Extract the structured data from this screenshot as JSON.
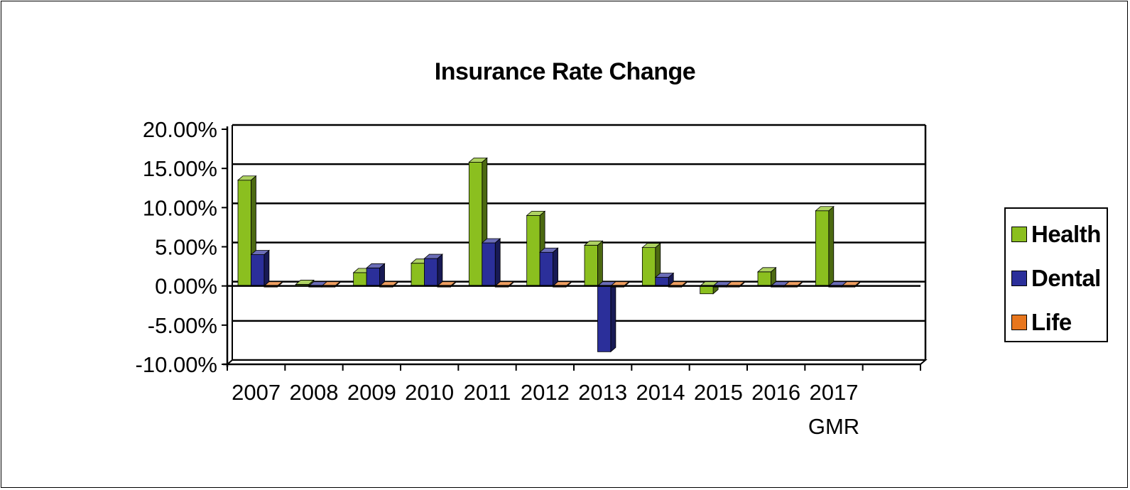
{
  "chart_data": {
    "type": "bar",
    "title": "Insurance Rate Change",
    "categories": [
      "2007",
      "2008",
      "2009",
      "2010",
      "2011",
      "2012",
      "2013",
      "2014",
      "2015",
      "2016",
      "2017"
    ],
    "category_sublabels": [
      "",
      "",
      "",
      "",
      "",
      "",
      "",
      "",
      "",
      "",
      "GMR"
    ],
    "y_tick_labels": [
      "20.00%",
      "15.00%",
      "10.00%",
      "5.00%",
      "0.00%",
      "-5.00%",
      "-10.00%"
    ],
    "ylim": [
      -10,
      20
    ],
    "y_unit": "%",
    "grid": true,
    "legend_position": "right",
    "series": [
      {
        "name": "Health",
        "color": "#8bbf1f",
        "values": [
          13.5,
          0.2,
          1.7,
          2.9,
          15.8,
          9.0,
          5.2,
          4.9,
          -1.0,
          1.8,
          9.6
        ]
      },
      {
        "name": "Dental",
        "color": "#2b2f9a",
        "values": [
          4.0,
          0.0,
          2.3,
          3.5,
          5.5,
          4.3,
          -8.4,
          1.1,
          0.0,
          0.0,
          0.0
        ]
      },
      {
        "name": "Life",
        "color": "#e8761d",
        "values": [
          0,
          0,
          0,
          0,
          0,
          0,
          0,
          0,
          0,
          0,
          0
        ]
      }
    ]
  }
}
